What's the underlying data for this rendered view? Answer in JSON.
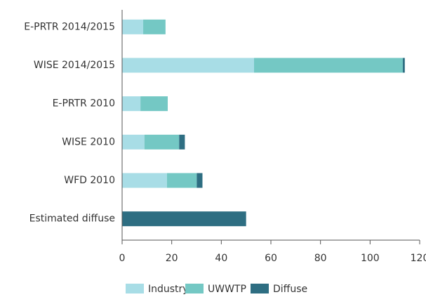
{
  "chart_data": {
    "type": "stacked-barh",
    "categories": [
      "E-PRTR 2014/2015",
      "WISE 2014/2015",
      "E-PRTR 2010",
      "WISE 2010",
      "WFD 2010",
      "Estimated diffuse"
    ],
    "series": [
      {
        "name": "Industry",
        "color": "#a8dde6",
        "values": [
          8.5,
          53.2,
          7.4,
          9,
          18.1,
          0
        ]
      },
      {
        "name": "UWWTP",
        "color": "#74c8c4",
        "values": [
          9,
          60,
          11,
          14,
          12,
          0
        ]
      },
      {
        "name": "Diffuse",
        "color": "#2e6e82",
        "values": [
          0,
          0.8,
          0,
          2.3,
          2.3,
          50
        ]
      }
    ],
    "xlim": [
      0,
      120
    ],
    "xticks": [
      0,
      20,
      40,
      60,
      80,
      100,
      120
    ],
    "legend": "bottom"
  }
}
